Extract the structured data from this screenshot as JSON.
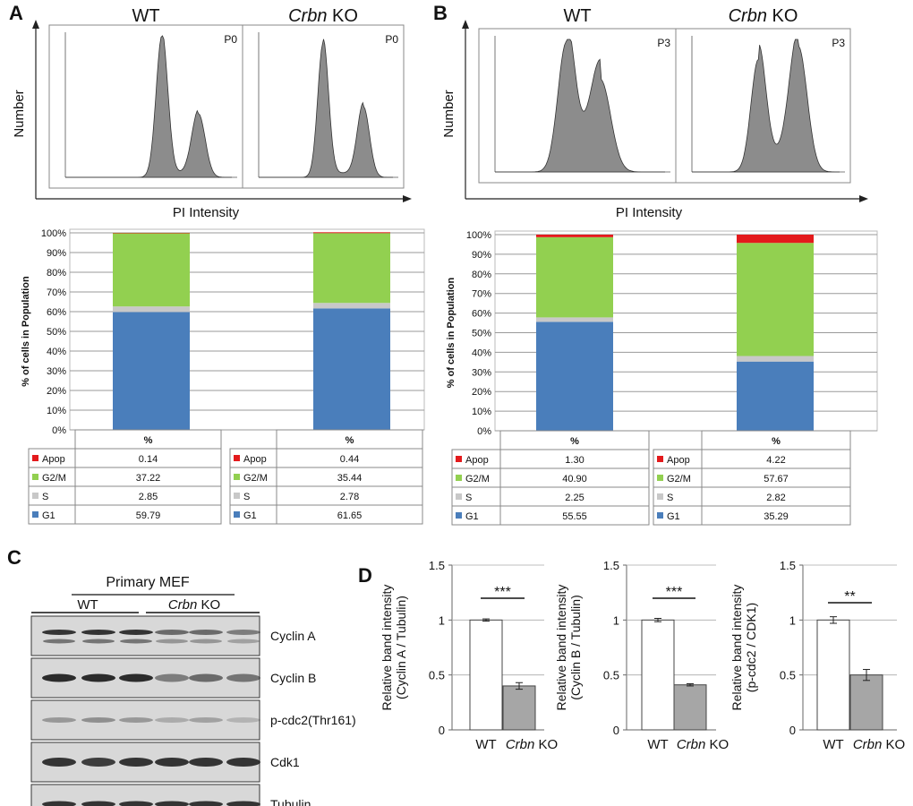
{
  "panel_labels": {
    "a": "A",
    "b": "B",
    "c": "C",
    "d": "D"
  },
  "chart_data": [
    {
      "id": "A-histogram",
      "type": "area",
      "groups": [
        "WT",
        "Crbn KO"
      ],
      "tags": [
        "P0",
        "P0"
      ],
      "xlabel": "PI Intensity",
      "ylabel": "Number"
    },
    {
      "id": "B-histogram",
      "type": "area",
      "groups": [
        "WT",
        "Crbn KO"
      ],
      "tags": [
        "P3",
        "P3"
      ],
      "xlabel": "PI Intensity",
      "ylabel": "Number"
    },
    {
      "id": "A-stacked",
      "type": "bar",
      "stacked": true,
      "ylabel": "% of cells in Population",
      "ylim": [
        0,
        100
      ],
      "yticks": [
        "0%",
        "10%",
        "20%",
        "30%",
        "40%",
        "50%",
        "60%",
        "70%",
        "80%",
        "90%",
        "100%"
      ],
      "table_header": "%",
      "series_order": [
        "G1",
        "S",
        "G2/M",
        "Apop"
      ],
      "colors": {
        "G1": "#4a7ebb",
        "S": "#c8c8c8",
        "G2/M": "#92d050",
        "Apop": "#e31a1c"
      },
      "bars": [
        {
          "G1": "59.79",
          "S": "2.85",
          "G2/M": "37.22",
          "Apop": "0.14"
        },
        {
          "G1": "61.65",
          "S": "2.78",
          "G2/M": "35.44",
          "Apop": "0.44"
        }
      ]
    },
    {
      "id": "B-stacked",
      "type": "bar",
      "stacked": true,
      "ylabel": "% of cells in Population",
      "ylim": [
        0,
        100
      ],
      "yticks": [
        "0%",
        "10%",
        "20%",
        "30%",
        "40%",
        "50%",
        "60%",
        "70%",
        "80%",
        "90%",
        "100%"
      ],
      "table_header": "%",
      "series_order": [
        "G1",
        "S",
        "G2/M",
        "Apop"
      ],
      "colors": {
        "G1": "#4a7ebb",
        "S": "#c8c8c8",
        "G2/M": "#92d050",
        "Apop": "#e31a1c"
      },
      "bars": [
        {
          "G1": "55.55",
          "S": "2.25",
          "G2/M": "40.90",
          "Apop": "1.30"
        },
        {
          "G1": "35.29",
          "S": "2.82",
          "G2/M": "57.67",
          "Apop": "4.22"
        }
      ]
    },
    {
      "id": "D1",
      "type": "bar",
      "categories": [
        "WT",
        "Crbn KO"
      ],
      "values": [
        1.0,
        0.4
      ],
      "errors": [
        0.01,
        0.03
      ],
      "ylabel": "Relative band intensity (Cyclin A / Tubulin)",
      "ylim": [
        0,
        1.5
      ],
      "yticks": [
        "0",
        "0.5",
        "1",
        "1.5"
      ],
      "significance": "***"
    },
    {
      "id": "D2",
      "type": "bar",
      "categories": [
        "WT",
        "Crbn KO"
      ],
      "values": [
        1.0,
        0.41
      ],
      "errors": [
        0.015,
        0.01
      ],
      "ylabel": "Relative band intensity (Cyclin B / Tubulin)",
      "ylim": [
        0,
        1.5
      ],
      "yticks": [
        "0",
        "0.5",
        "1",
        "1.5"
      ],
      "significance": "***"
    },
    {
      "id": "D3",
      "type": "bar",
      "categories": [
        "WT",
        "Crbn KO"
      ],
      "values": [
        1.0,
        0.5
      ],
      "errors": [
        0.03,
        0.05
      ],
      "ylabel": "Relative band intensity (p-cdc2 / CDK1)",
      "ylim": [
        0,
        1.5
      ],
      "yticks": [
        "0",
        "0.5",
        "1",
        "1.5"
      ],
      "significance": "**"
    }
  ],
  "blot": {
    "title": "Primary MEF",
    "groups": [
      "WT",
      "Crbn KO"
    ],
    "bands": [
      "Cyclin A",
      "Cyclin B",
      "p-cdc2(Thr161)",
      "Cdk1",
      "Tubulin"
    ]
  }
}
